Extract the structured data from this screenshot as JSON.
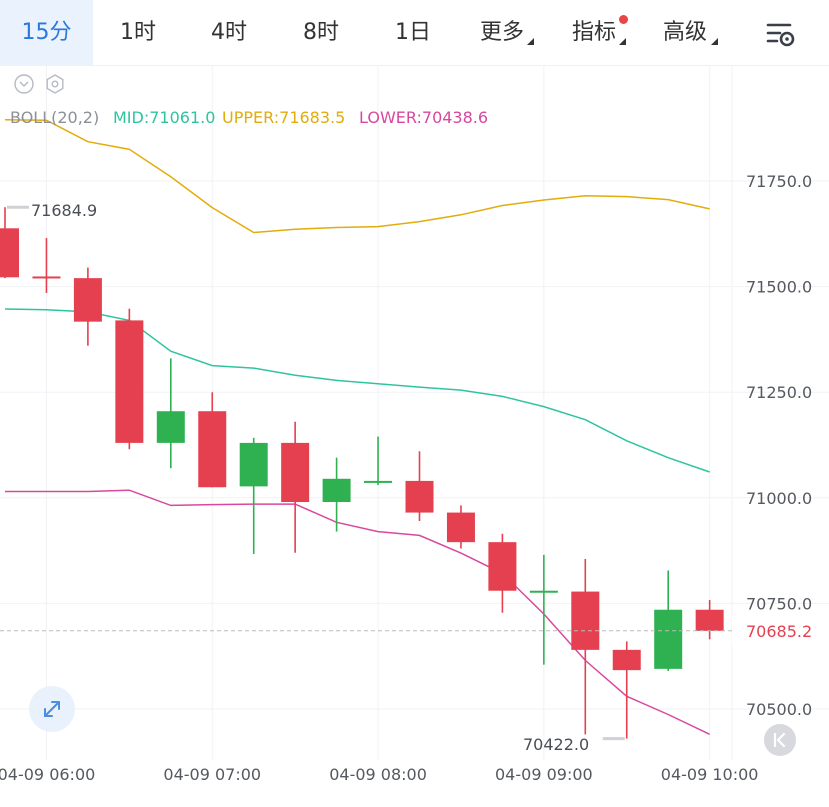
{
  "toolbar": {
    "tabs": [
      {
        "label": "15分",
        "active": true
      },
      {
        "label": "1时"
      },
      {
        "label": "4时"
      },
      {
        "label": "8时"
      },
      {
        "label": "1日"
      },
      {
        "label": "更多",
        "dropdown": true
      },
      {
        "label": "指标",
        "dropdown": true,
        "notification_dot": true
      },
      {
        "label": "高级",
        "dropdown": true
      }
    ],
    "settings_icon": "chart-settings-icon"
  },
  "indicator": {
    "name": "BOLL(20,2)",
    "mid_label": "MID:71061.0",
    "upper_label": "UPPER:71683.5",
    "lower_label": "LOWER:70438.6",
    "icons": [
      "collapse-icon",
      "indicator-settings-icon"
    ]
  },
  "colors": {
    "up": "#2fb151",
    "down": "#e5404f",
    "mid": "#2ec4a0",
    "upper": "#e2ac0a",
    "lower": "#d8489e",
    "price_line": "#bcbcbc",
    "price_label": "#e5404f",
    "active_tab": "#2b78d9"
  },
  "chart_data": {
    "type": "candlestick",
    "y_axis": {
      "ticks": [
        "71750.0",
        "71500.0",
        "71250.0",
        "71000.0",
        "70750.0",
        "70500.0"
      ],
      "tick_values": [
        71750,
        71500,
        71250,
        71000,
        70750,
        70500
      ],
      "position": "right"
    },
    "x_axis": {
      "tick_labels": [
        "04-09 06:00",
        "04-09 07:00",
        "04-09 08:00",
        "04-09 09:00",
        "04-09 10:00"
      ],
      "tick_times": [
        "06:00",
        "07:00",
        "08:00",
        "09:00",
        "10:00"
      ]
    },
    "current_price": "70685.2",
    "max_label": "71684.9",
    "min_label": "70422.0",
    "candles": [
      {
        "time": "05:45",
        "open": 71638,
        "high": 71688,
        "low": 71520,
        "close": 71522
      },
      {
        "time": "06:00",
        "open": 71524,
        "high": 71615,
        "low": 71485,
        "close": 71520
      },
      {
        "time": "06:15",
        "open": 71520,
        "high": 71545,
        "low": 71360,
        "close": 71417
      },
      {
        "time": "06:30",
        "open": 71420,
        "high": 71448,
        "low": 71115,
        "close": 71130
      },
      {
        "time": "06:45",
        "open": 71130,
        "high": 71330,
        "low": 71070,
        "close": 71205
      },
      {
        "time": "07:00",
        "open": 71205,
        "high": 71250,
        "low": 71025,
        "close": 71025
      },
      {
        "time": "07:15",
        "open": 71027,
        "high": 71142,
        "low": 70867,
        "close": 71130
      },
      {
        "time": "07:30",
        "open": 71130,
        "high": 71180,
        "low": 70870,
        "close": 70990
      },
      {
        "time": "07:45",
        "open": 70990,
        "high": 71095,
        "low": 70920,
        "close": 71045
      },
      {
        "time": "08:00",
        "open": 71040,
        "high": 71145,
        "low": 71030,
        "close": 71040
      },
      {
        "time": "08:15",
        "open": 71040,
        "high": 71110,
        "low": 70945,
        "close": 70965
      },
      {
        "time": "08:30",
        "open": 70965,
        "high": 70982,
        "low": 70880,
        "close": 70895
      },
      {
        "time": "08:45",
        "open": 70895,
        "high": 70915,
        "low": 70728,
        "close": 70780
      },
      {
        "time": "09:00",
        "open": 70780,
        "high": 70865,
        "low": 70605,
        "close": 70780
      },
      {
        "time": "09:15",
        "open": 70778,
        "high": 70855,
        "low": 70440,
        "close": 70640
      },
      {
        "time": "09:30",
        "open": 70640,
        "high": 70660,
        "low": 70430,
        "close": 70592
      },
      {
        "time": "09:45",
        "open": 70595,
        "high": 70828,
        "low": 70590,
        "close": 70735
      },
      {
        "time": "10:00",
        "open": 70735,
        "high": 70758,
        "low": 70665,
        "close": 70685
      }
    ],
    "series": [
      {
        "name": "UPPER",
        "values": [
          71895,
          71894,
          71843,
          71825,
          71760,
          71687,
          71628,
          71636,
          71640,
          71642,
          71654,
          71670,
          71692,
          71705,
          71715,
          71713,
          71706,
          71684
        ]
      },
      {
        "name": "MID",
        "values": [
          71447,
          71445,
          71440,
          71420,
          71347,
          71313,
          71307,
          71290,
          71278,
          71270,
          71262,
          71255,
          71240,
          71216,
          71185,
          71135,
          71095,
          71061
        ]
      },
      {
        "name": "LOWER",
        "values": [
          71015,
          71015,
          71015,
          71018,
          70982,
          70984,
          70985,
          70985,
          70942,
          70920,
          70911,
          70869,
          70821,
          70725,
          70615,
          70530,
          70487,
          70440
        ]
      }
    ]
  }
}
